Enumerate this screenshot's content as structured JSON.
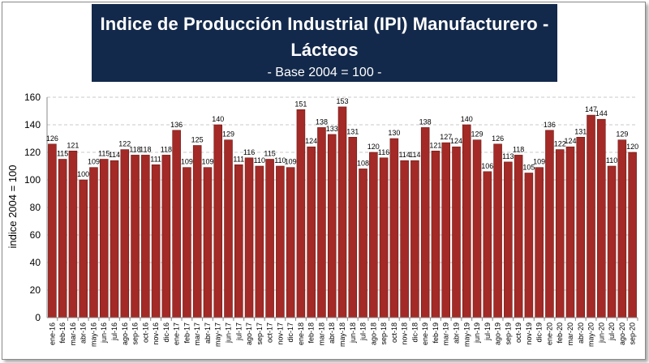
{
  "chart_data": {
    "type": "bar",
    "title": "Indice de Producción Industrial (IPI) Manufacturero -",
    "title_line2": "Lácteos",
    "subtitle": "- Base 2004 = 100 -",
    "ylabel": "indice 2004 = 100",
    "xlabel": "",
    "ylim": [
      0,
      160
    ],
    "yticks": [
      0,
      20,
      40,
      60,
      80,
      100,
      120,
      140,
      160
    ],
    "grid": true,
    "legend": "none",
    "bar_color": "#a32a26",
    "categories": [
      "ene-16",
      "feb-16",
      "mar-16",
      "abr-16",
      "may-16",
      "jun-16",
      "jul-16",
      "ago-16",
      "sep-16",
      "oct-16",
      "nov-16",
      "dic-16",
      "ene-17",
      "feb-17",
      "mar-17",
      "abr-17",
      "may-17",
      "jun-17",
      "jul-17",
      "ago-17",
      "sep-17",
      "oct-17",
      "nov-17",
      "dic-17",
      "ene-18",
      "feb-18",
      "mar-18",
      "abr-18",
      "may-18",
      "jun-18",
      "jul-18",
      "ago-18",
      "sep-18",
      "oct-18",
      "nov-18",
      "dic-18",
      "ene-19",
      "feb-19",
      "mar-19",
      "abr-19",
      "may-19",
      "jun-19",
      "jul-19",
      "ago-19",
      "sep-19",
      "oct-19",
      "nov-19",
      "dic-19",
      "ene-20",
      "feb-20",
      "mar-20",
      "abr-20",
      "may-20",
      "jun-20",
      "jul-20",
      "ago-20",
      "sep-20"
    ],
    "values": [
      126,
      115,
      121,
      100,
      109,
      115,
      114,
      122,
      118,
      118,
      111,
      118,
      136,
      109,
      125,
      109,
      140,
      129,
      111,
      116,
      110,
      115,
      110,
      109,
      151,
      124,
      138,
      133,
      153,
      131,
      108,
      120,
      116,
      130,
      114,
      114,
      138,
      121,
      127,
      124,
      140,
      129,
      106,
      126,
      113,
      118,
      105,
      109,
      136,
      122,
      124,
      131,
      147,
      144,
      110,
      129,
      120
    ]
  }
}
